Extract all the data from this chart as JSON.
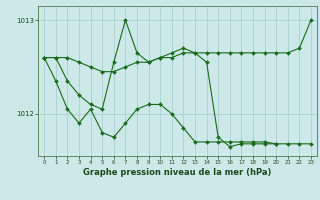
{
  "title": "Graphe pression niveau de la mer (hPa)",
  "background_color": "#cce8e8",
  "grid_color": "#aad4d4",
  "line_color": "#1a6b1a",
  "marker_color": "#1a6b1a",
  "xlim": [
    -0.5,
    23.5
  ],
  "ylim": [
    1011.55,
    1013.15
  ],
  "yticks": [
    1012,
    1013
  ],
  "xticks": [
    0,
    1,
    2,
    3,
    4,
    5,
    6,
    7,
    8,
    9,
    10,
    11,
    12,
    13,
    14,
    15,
    16,
    17,
    18,
    19,
    20,
    21,
    22,
    23
  ],
  "series": [
    [
      1012.6,
      1012.6,
      1012.6,
      1012.55,
      1012.5,
      1012.45,
      1012.45,
      1012.5,
      1012.55,
      1012.55,
      1012.6,
      1012.6,
      1012.65,
      1012.65,
      1012.65,
      1012.65,
      1012.65,
      1012.65,
      1012.65,
      1012.65,
      1012.65,
      1012.65,
      1012.7,
      1013.0
    ],
    [
      1012.6,
      1012.6,
      1012.35,
      1012.2,
      1012.1,
      1012.05,
      1012.55,
      1013.0,
      1012.65,
      1012.55,
      1012.6,
      1012.65,
      1012.7,
      1012.65,
      1012.55,
      1011.75,
      1011.65,
      1011.68,
      1011.68,
      1011.68,
      1011.68,
      1011.68,
      1011.68,
      1011.68
    ],
    [
      1012.6,
      1012.35,
      1012.05,
      1011.9,
      1012.05,
      1011.8,
      1011.75,
      1011.9,
      1012.05,
      1012.1,
      1012.1,
      1012.0,
      1011.85,
      1011.7,
      1011.7,
      1011.7,
      1011.7,
      1011.7,
      1011.7,
      1011.7,
      1011.68,
      null,
      null,
      null
    ]
  ]
}
